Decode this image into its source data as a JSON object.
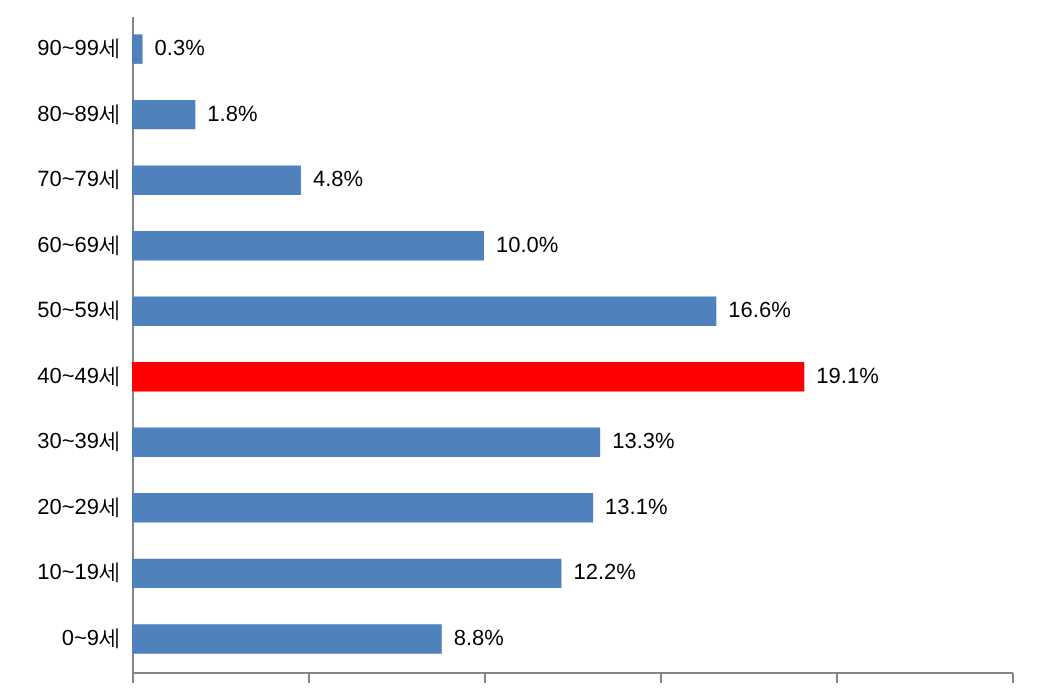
{
  "chart_data": {
    "type": "bar",
    "orientation": "horizontal",
    "categories": [
      "90~99세",
      "80~89세",
      "70~79세",
      "60~69세",
      "50~59세",
      "40~49세",
      "30~39세",
      "20~29세",
      "10~19세",
      "0~9세"
    ],
    "values": [
      0.3,
      1.8,
      4.8,
      10.0,
      16.6,
      19.1,
      13.3,
      13.1,
      12.2,
      8.8
    ],
    "value_labels": [
      "0.3%",
      "1.8%",
      "4.8%",
      "10.0%",
      "16.6%",
      "19.1%",
      "13.3%",
      "13.1%",
      "12.2%",
      "8.8%"
    ],
    "colors": [
      "#4f81bd",
      "#4f81bd",
      "#4f81bd",
      "#4f81bd",
      "#4f81bd",
      "#ff0000",
      "#4f81bd",
      "#4f81bd",
      "#4f81bd",
      "#4f81bd"
    ],
    "xlim": [
      0,
      25
    ],
    "xticks": [
      {
        "value": 0,
        "label": null
      },
      {
        "value": 5,
        "label": null
      },
      {
        "value": 10,
        "label": null
      },
      {
        "value": 15,
        "label": null
      },
      {
        "value": 20,
        "label": null
      },
      {
        "value": 25,
        "label": null
      }
    ],
    "tick_labels": "y",
    "grid": false
  }
}
